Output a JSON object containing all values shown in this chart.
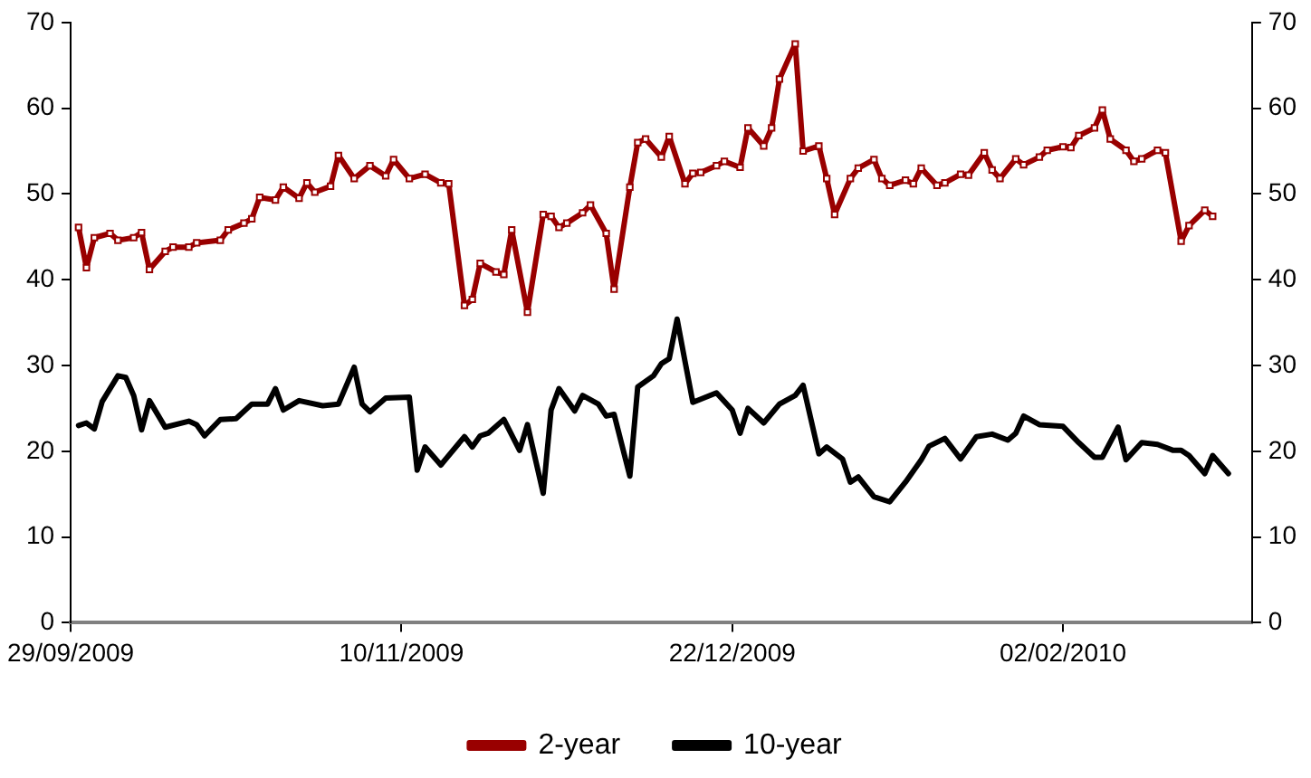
{
  "chart_data": {
    "type": "line",
    "xlim": [
      "2009-09-29",
      "2010-02-26"
    ],
    "xticks": [
      {
        "value": "2009-09-29",
        "label": "29/09/2009"
      },
      {
        "value": "2009-11-10",
        "label": "10/11/2009"
      },
      {
        "value": "2009-12-22",
        "label": "22/12/2009"
      },
      {
        "value": "2010-02-02",
        "label": "02/02/2010"
      }
    ],
    "ylim": [
      0,
      70
    ],
    "yticks": [
      0,
      10,
      20,
      30,
      40,
      50,
      60,
      70
    ],
    "y2lim": [
      0,
      70
    ],
    "y2ticks": [
      0,
      10,
      20,
      30,
      40,
      50,
      60,
      70
    ],
    "grid": false,
    "legend": "bottom",
    "line_style": "solid",
    "series": [
      {
        "name": "2-year",
        "color": "#990000",
        "marker": "square",
        "x": [
          "2009-09-30",
          "2009-10-01",
          "2009-10-02",
          "2009-10-04",
          "2009-10-05",
          "2009-10-07",
          "2009-10-08",
          "2009-10-09",
          "2009-10-11",
          "2009-10-12",
          "2009-10-14",
          "2009-10-15",
          "2009-10-18",
          "2009-10-19",
          "2009-10-21",
          "2009-10-22",
          "2009-10-23",
          "2009-10-25",
          "2009-10-26",
          "2009-10-28",
          "2009-10-29",
          "2009-10-30",
          "2009-11-01",
          "2009-11-02",
          "2009-11-04",
          "2009-11-06",
          "2009-11-08",
          "2009-11-09",
          "2009-11-11",
          "2009-11-13",
          "2009-11-15",
          "2009-11-16",
          "2009-11-18",
          "2009-11-19",
          "2009-11-20",
          "2009-11-22",
          "2009-11-23",
          "2009-11-24",
          "2009-11-26",
          "2009-11-28",
          "2009-11-29",
          "2009-11-30",
          "2009-12-01",
          "2009-12-03",
          "2009-12-04",
          "2009-12-06",
          "2009-12-07",
          "2009-12-09",
          "2009-12-10",
          "2009-12-11",
          "2009-12-13",
          "2009-12-14",
          "2009-12-16",
          "2009-12-17",
          "2009-12-18",
          "2009-12-20",
          "2009-12-21",
          "2009-12-23",
          "2009-12-24",
          "2009-12-26",
          "2009-12-27",
          "2009-12-28",
          "2009-12-30",
          "2009-12-31",
          "2010-01-02",
          "2010-01-03",
          "2010-01-04",
          "2010-01-06",
          "2010-01-07",
          "2010-01-09",
          "2010-01-10",
          "2010-01-11",
          "2010-01-13",
          "2010-01-14",
          "2010-01-15",
          "2010-01-17",
          "2010-01-18",
          "2010-01-20",
          "2010-01-21",
          "2010-01-23",
          "2010-01-24",
          "2010-01-25",
          "2010-01-27",
          "2010-01-28",
          "2010-01-30",
          "2010-01-31",
          "2010-02-02",
          "2010-02-03",
          "2010-02-04",
          "2010-02-06",
          "2010-02-07",
          "2010-02-08",
          "2010-02-10",
          "2010-02-11",
          "2010-02-12",
          "2010-02-14",
          "2010-02-15",
          "2010-02-17",
          "2010-02-18",
          "2010-02-20",
          "2010-02-21"
        ],
        "values": [
          46.1,
          41.4,
          44.9,
          45.4,
          44.6,
          44.9,
          45.5,
          41.2,
          43.3,
          43.8,
          43.8,
          44.3,
          44.6,
          45.8,
          46.6,
          47.1,
          49.6,
          49.3,
          50.8,
          49.5,
          51.3,
          50.2,
          50.9,
          54.5,
          51.8,
          53.3,
          52.1,
          54.0,
          51.8,
          52.3,
          51.3,
          51.2,
          37.0,
          37.7,
          41.9,
          40.9,
          40.6,
          45.8,
          36.2,
          47.6,
          47.4,
          46.1,
          46.6,
          47.8,
          48.7,
          45.4,
          38.9,
          50.8,
          56.0,
          56.4,
          54.3,
          56.7,
          51.2,
          52.4,
          52.5,
          53.3,
          53.8,
          53.1,
          57.7,
          55.6,
          57.7,
          63.4,
          67.5,
          55.0,
          55.6,
          51.8,
          47.6,
          51.8,
          53.0,
          54.0,
          51.8,
          51.0,
          51.6,
          51.2,
          53.0,
          51.0,
          51.3,
          52.3,
          52.2,
          54.8,
          52.8,
          51.8,
          54.1,
          53.4,
          54.3,
          55.1,
          55.5,
          55.4,
          56.8,
          57.7,
          59.8,
          56.4,
          55.1,
          53.8,
          54.1,
          55.1,
          54.8,
          44.5,
          46.3,
          48.1,
          47.4
        ]
      },
      {
        "name": "10-year",
        "color": "#000000",
        "marker": "none",
        "x": [
          "2009-09-30",
          "2009-10-01",
          "2009-10-02",
          "2009-10-03",
          "2009-10-05",
          "2009-10-06",
          "2009-10-07",
          "2009-10-08",
          "2009-10-09",
          "2009-10-11",
          "2009-10-14",
          "2009-10-15",
          "2009-10-16",
          "2009-10-18",
          "2009-10-20",
          "2009-10-22",
          "2009-10-24",
          "2009-10-25",
          "2009-10-26",
          "2009-10-28",
          "2009-10-31",
          "2009-11-02",
          "2009-11-04",
          "2009-11-05",
          "2009-11-06",
          "2009-11-08",
          "2009-11-11",
          "2009-11-12",
          "2009-11-13",
          "2009-11-15",
          "2009-11-18",
          "2009-11-19",
          "2009-11-20",
          "2009-11-21",
          "2009-11-23",
          "2009-11-25",
          "2009-11-26",
          "2009-11-28",
          "2009-11-29",
          "2009-11-30",
          "2009-12-02",
          "2009-12-03",
          "2009-12-05",
          "2009-12-06",
          "2009-12-07",
          "2009-12-09",
          "2009-12-10",
          "2009-12-12",
          "2009-12-13",
          "2009-12-14",
          "2009-12-15",
          "2009-12-16",
          "2009-12-17",
          "2009-12-20",
          "2009-12-22",
          "2009-12-23",
          "2009-12-24",
          "2009-12-26",
          "2009-12-28",
          "2009-12-30",
          "2009-12-31",
          "2010-01-02",
          "2010-01-03",
          "2010-01-05",
          "2010-01-06",
          "2010-01-07",
          "2010-01-09",
          "2010-01-11",
          "2010-01-13",
          "2010-01-15",
          "2010-01-16",
          "2010-01-18",
          "2010-01-20",
          "2010-01-22",
          "2010-01-24",
          "2010-01-26",
          "2010-01-27",
          "2010-01-28",
          "2010-01-30",
          "2010-02-02",
          "2010-02-04",
          "2010-02-06",
          "2010-02-07",
          "2010-02-09",
          "2010-02-10",
          "2010-02-12",
          "2010-02-14",
          "2010-02-16",
          "2010-02-17",
          "2010-02-18",
          "2010-02-20",
          "2010-02-21",
          "2010-02-23"
        ],
        "values": [
          23.0,
          23.3,
          22.6,
          25.8,
          28.8,
          28.6,
          26.5,
          22.5,
          25.9,
          22.8,
          23.5,
          23.1,
          21.8,
          23.7,
          23.8,
          25.5,
          25.5,
          27.3,
          24.8,
          25.9,
          25.3,
          25.5,
          29.8,
          25.5,
          24.6,
          26.2,
          26.3,
          17.8,
          20.5,
          18.4,
          21.7,
          20.5,
          21.8,
          22.1,
          23.7,
          20.1,
          23.1,
          15.1,
          24.8,
          27.3,
          24.7,
          26.5,
          25.5,
          24.1,
          24.3,
          17.1,
          27.5,
          28.8,
          30.2,
          30.8,
          35.4,
          30.5,
          25.7,
          26.8,
          24.8,
          22.1,
          25.0,
          23.3,
          25.5,
          26.5,
          27.7,
          19.7,
          20.5,
          19.1,
          16.4,
          17.0,
          14.7,
          14.1,
          16.4,
          19.0,
          20.6,
          21.5,
          19.1,
          21.7,
          22.0,
          21.3,
          22.1,
          24.1,
          23.1,
          22.9,
          21.0,
          19.3,
          19.3,
          22.8,
          19.0,
          21.0,
          20.8,
          20.1,
          20.1,
          19.5,
          17.4,
          19.5,
          17.4
        ]
      }
    ]
  }
}
